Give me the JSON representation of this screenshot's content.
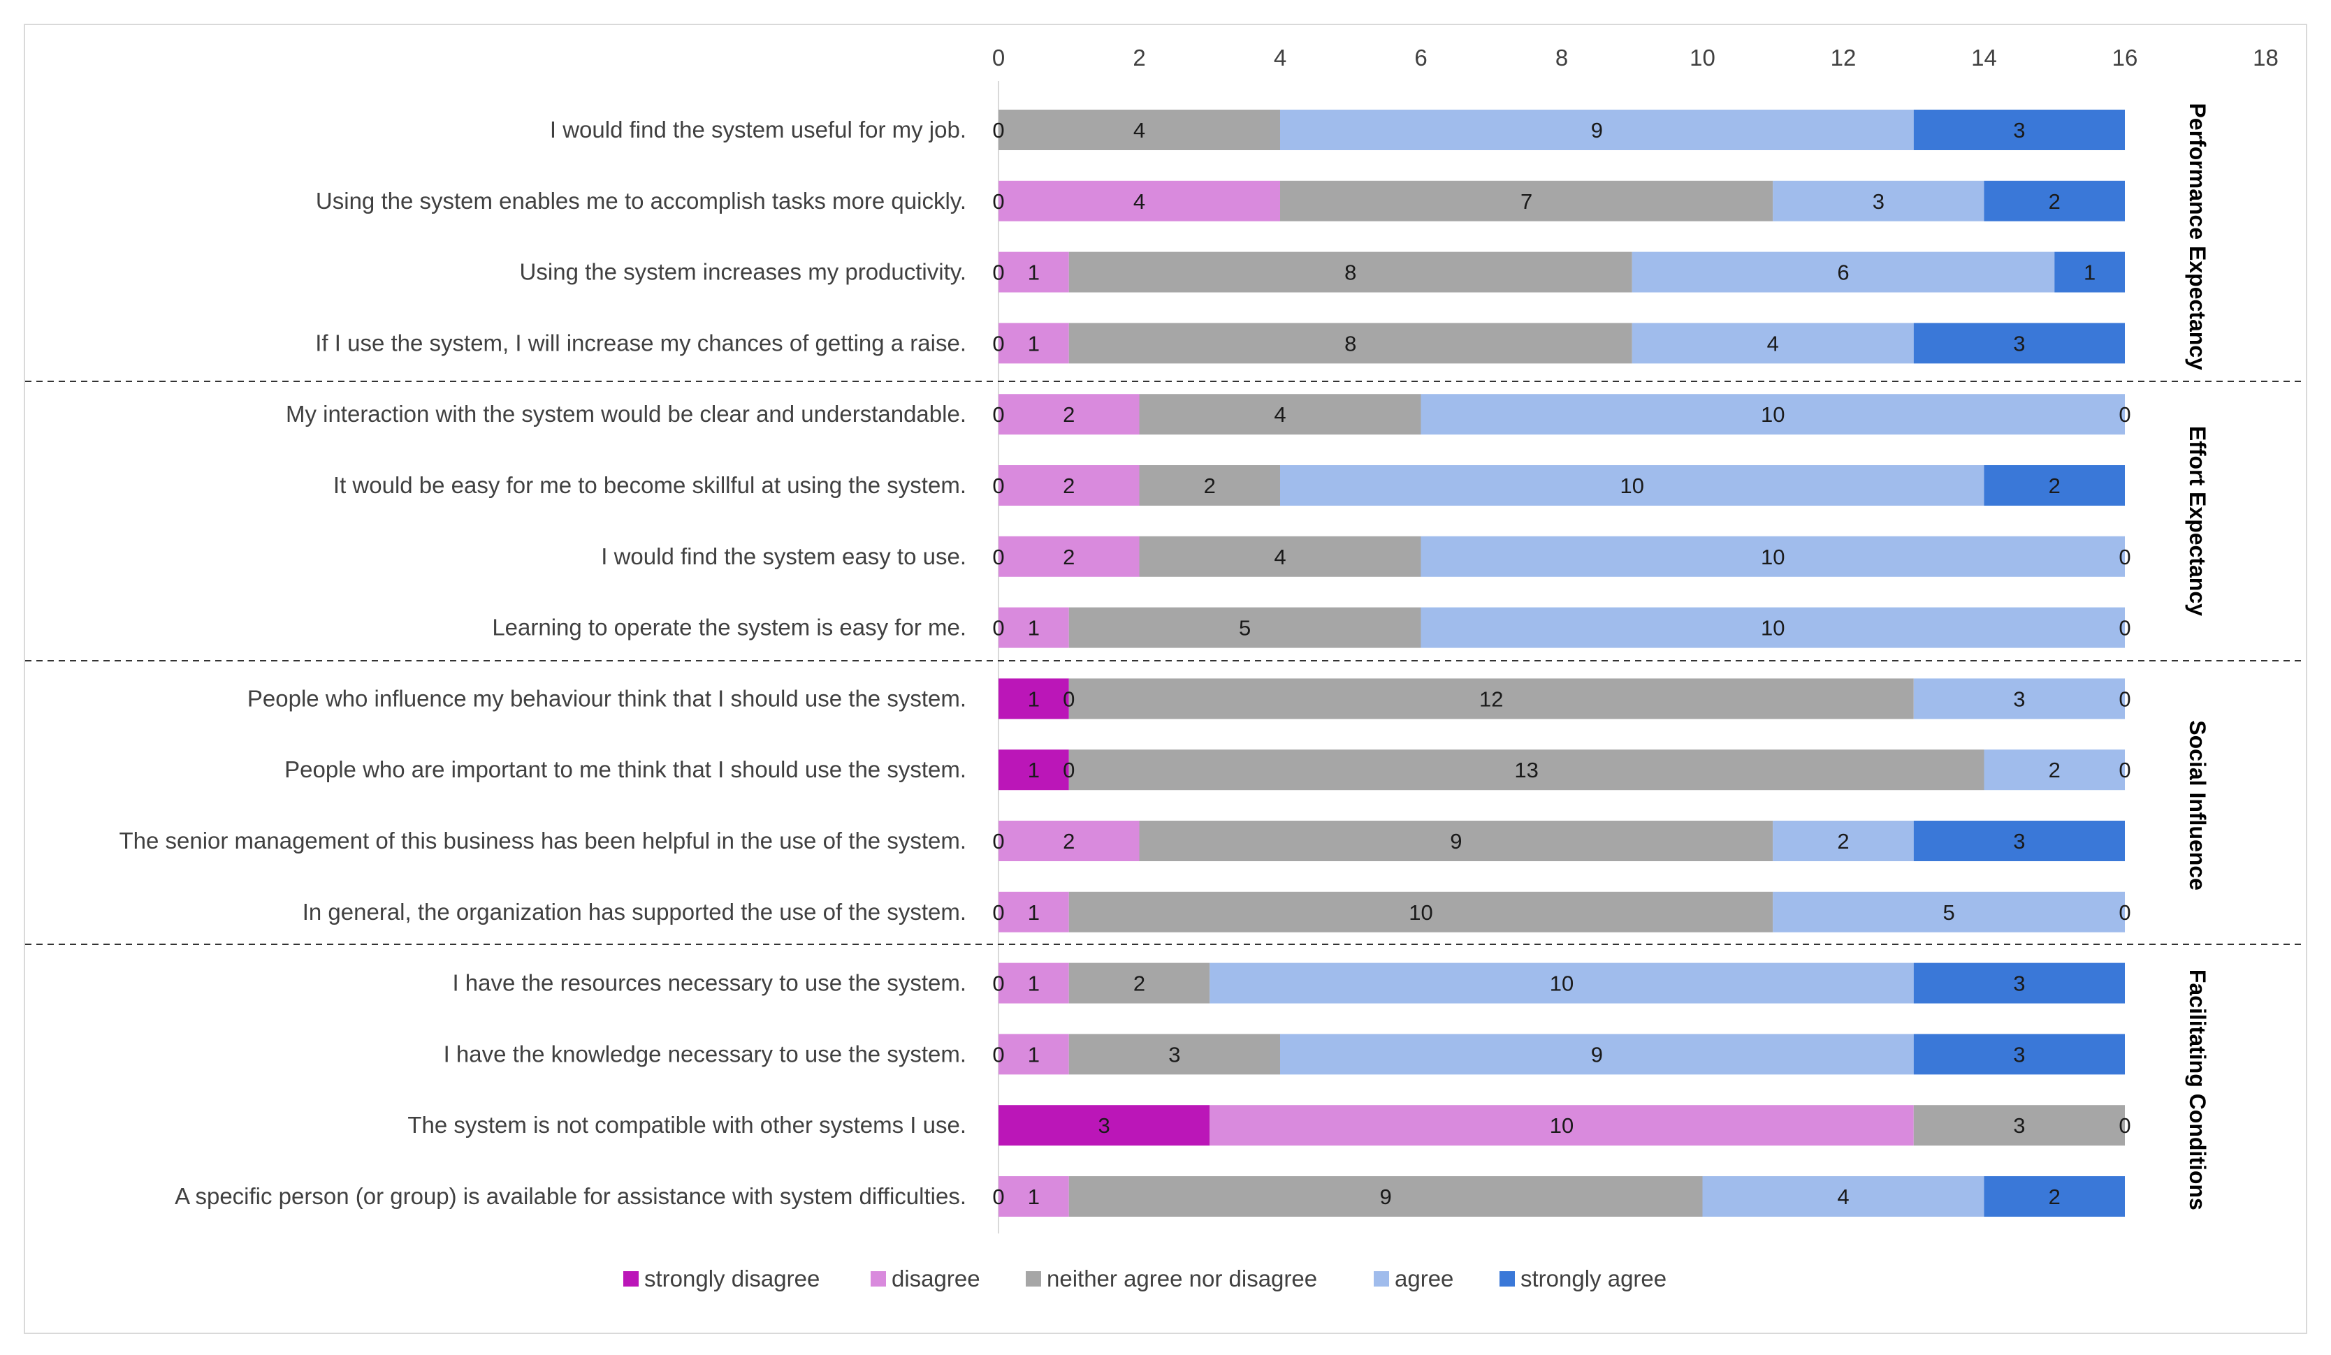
{
  "chart_data": {
    "type": "bar",
    "orientation": "horizontal",
    "stacked": true,
    "title": "",
    "xlabel": "",
    "ylabel": "",
    "xlim": [
      0,
      18
    ],
    "x_ticks": [
      0,
      2,
      4,
      6,
      8,
      10,
      12,
      14,
      16,
      18
    ],
    "x_axis_position": "top",
    "grid": false,
    "legend_position": "bottom",
    "series": [
      {
        "name": "strongly disagree",
        "color": "#bb16b8"
      },
      {
        "name": "disagree",
        "color": "#d98add"
      },
      {
        "name": "neither agree nor disagree",
        "color": "#a6a6a6"
      },
      {
        "name": "agree",
        "color": "#a0bcec"
      },
      {
        "name": "strongly agree",
        "color": "#3a78d8"
      }
    ],
    "groups": [
      {
        "name": "Performance Expectancy",
        "items": [
          0,
          1,
          2,
          3
        ]
      },
      {
        "name": "Effort Expectancy",
        "items": [
          4,
          5,
          6,
          7
        ]
      },
      {
        "name": "Social Influence",
        "items": [
          8,
          9,
          10,
          11
        ]
      },
      {
        "name": "Facilitating Conditions",
        "items": [
          12,
          13,
          14,
          15
        ]
      }
    ],
    "categories": [
      "I would find the system useful for my job.",
      "Using the system enables me to accomplish tasks more quickly.",
      "Using the system increases my productivity.",
      "If I use the system, I will increase my chances of getting a raise.",
      "My interaction with the system would be clear and understandable.",
      "It would be easy for me to become skillful at using the system.",
      "I would find the system easy to use.",
      "Learning to operate the system is easy for me.",
      "People who influence my behaviour think that I should use the system.",
      "People who are important to me think that I should use the system.",
      "The senior management of this business has been helpful in the use of the system.",
      "In general, the organization has supported the use of the system.",
      "I have the resources necessary to use the system.",
      "I have the knowledge necessary to use the system.",
      "The system is not compatible with other systems I use.",
      "A specific person (or group) is available for assistance with system difficulties."
    ],
    "values": [
      [
        0,
        4,
        9,
        3
      ],
      [
        0,
        4,
        7,
        3,
        2
      ],
      [
        0,
        1,
        8,
        6,
        1
      ],
      [
        0,
        1,
        8,
        4,
        3
      ],
      [
        0,
        2,
        4,
        10,
        0
      ],
      [
        0,
        2,
        2,
        10,
        2
      ],
      [
        0,
        2,
        4,
        10,
        0
      ],
      [
        0,
        1,
        5,
        10,
        0
      ],
      [
        1,
        0,
        12,
        3,
        0
      ],
      [
        1,
        0,
        13,
        2,
        0
      ],
      [
        0,
        2,
        9,
        2,
        3
      ],
      [
        0,
        1,
        10,
        5,
        0
      ],
      [
        0,
        1,
        2,
        10,
        3
      ],
      [
        0,
        1,
        3,
        9,
        3
      ],
      [
        3,
        10,
        3,
        0
      ],
      [
        0,
        1,
        9,
        4,
        2
      ]
    ],
    "value_series_map": [
      [
        0,
        2,
        3,
        4
      ],
      [
        0,
        1,
        2,
        3,
        4
      ],
      [
        0,
        1,
        2,
        3,
        4
      ],
      [
        0,
        1,
        2,
        3,
        4
      ],
      [
        0,
        1,
        2,
        3,
        4
      ],
      [
        0,
        1,
        2,
        3,
        4
      ],
      [
        0,
        1,
        2,
        3,
        4
      ],
      [
        0,
        1,
        2,
        3,
        4
      ],
      [
        0,
        1,
        2,
        3,
        4
      ],
      [
        0,
        1,
        2,
        3,
        4
      ],
      [
        0,
        1,
        2,
        3,
        4
      ],
      [
        0,
        1,
        2,
        3,
        4
      ],
      [
        0,
        1,
        2,
        3,
        4
      ],
      [
        0,
        1,
        2,
        3,
        4
      ],
      [
        0,
        1,
        2,
        4
      ],
      [
        0,
        1,
        2,
        3,
        4
      ]
    ]
  }
}
